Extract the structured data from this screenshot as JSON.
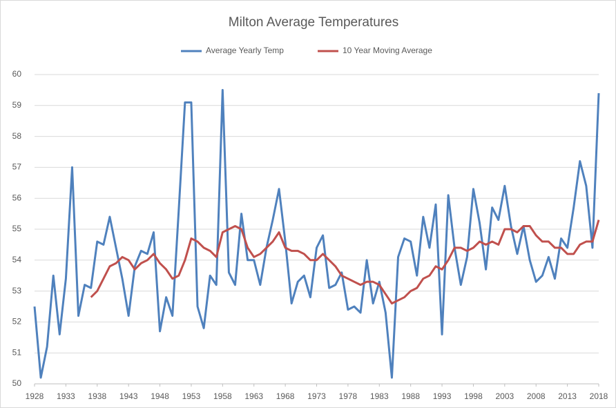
{
  "chart_data": {
    "type": "line",
    "title": "Milton Average Temperatures",
    "x": [
      1928,
      1929,
      1930,
      1931,
      1932,
      1933,
      1934,
      1935,
      1936,
      1937,
      1938,
      1939,
      1940,
      1941,
      1942,
      1943,
      1944,
      1945,
      1946,
      1947,
      1948,
      1949,
      1950,
      1951,
      1952,
      1953,
      1954,
      1955,
      1956,
      1957,
      1958,
      1959,
      1960,
      1961,
      1962,
      1963,
      1964,
      1965,
      1966,
      1967,
      1968,
      1969,
      1970,
      1971,
      1972,
      1973,
      1974,
      1975,
      1976,
      1977,
      1978,
      1979,
      1980,
      1981,
      1982,
      1983,
      1984,
      1985,
      1986,
      1987,
      1988,
      1989,
      1990,
      1991,
      1992,
      1993,
      1994,
      1995,
      1996,
      1997,
      1998,
      1999,
      2000,
      2001,
      2002,
      2003,
      2004,
      2005,
      2006,
      2007,
      2008,
      2009,
      2010,
      2011,
      2012,
      2013,
      2014,
      2015,
      2016,
      2017,
      2018
    ],
    "series": [
      {
        "name": "Average Yearly Temp",
        "color": "#4f81bd",
        "values": [
          52.5,
          50.2,
          51.2,
          53.5,
          51.6,
          53.4,
          57.0,
          52.2,
          53.2,
          53.1,
          54.6,
          54.5,
          55.4,
          54.4,
          53.4,
          52.2,
          53.8,
          54.3,
          54.2,
          54.9,
          51.7,
          52.8,
          52.2,
          55.6,
          59.1,
          59.1,
          52.5,
          51.8,
          53.5,
          53.2,
          59.5,
          53.6,
          53.2,
          55.5,
          54.0,
          54.0,
          53.2,
          54.4,
          55.3,
          56.3,
          54.6,
          52.6,
          53.3,
          53.5,
          52.8,
          54.4,
          54.8,
          53.1,
          53.2,
          53.6,
          52.4,
          52.5,
          52.3,
          54.0,
          52.6,
          53.3,
          52.3,
          50.2,
          54.1,
          54.7,
          54.6,
          53.5,
          55.4,
          54.4,
          55.8,
          51.6,
          56.1,
          54.4,
          53.2,
          54.1,
          56.3,
          55.2,
          53.7,
          55.7,
          55.3,
          56.4,
          55.1,
          54.2,
          55.1,
          54.0,
          53.3,
          53.5,
          54.1,
          53.4,
          54.7,
          54.4,
          55.7,
          57.2,
          56.4,
          54.4,
          59.4
        ]
      },
      {
        "name": "10 Year Moving Average",
        "color": "#c0504d",
        "values": [
          null,
          null,
          null,
          null,
          null,
          null,
          null,
          null,
          null,
          52.8,
          53.0,
          53.4,
          53.8,
          53.9,
          54.1,
          54.0,
          53.7,
          53.9,
          54.0,
          54.2,
          53.9,
          53.7,
          53.4,
          53.5,
          54.0,
          54.7,
          54.6,
          54.4,
          54.3,
          54.1,
          54.9,
          55.0,
          55.1,
          55.0,
          54.4,
          54.1,
          54.2,
          54.4,
          54.6,
          54.9,
          54.4,
          54.3,
          54.3,
          54.2,
          54.0,
          54.0,
          54.2,
          54.0,
          53.8,
          53.5,
          53.4,
          53.3,
          53.2,
          53.3,
          53.3,
          53.2,
          52.9,
          52.6,
          52.7,
          52.8,
          53.0,
          53.1,
          53.4,
          53.5,
          53.8,
          53.7,
          54.0,
          54.4,
          54.4,
          54.3,
          54.4,
          54.6,
          54.5,
          54.6,
          54.5,
          55.0,
          55.0,
          54.9,
          55.1,
          55.1,
          54.8,
          54.6,
          54.6,
          54.4,
          54.4,
          54.2,
          54.2,
          54.5,
          54.6,
          54.6,
          55.3
        ]
      }
    ],
    "xlim": [
      1928,
      2018
    ],
    "xticks": [
      1928,
      1933,
      1938,
      1943,
      1948,
      1953,
      1958,
      1963,
      1968,
      1973,
      1978,
      1983,
      1988,
      1993,
      1998,
      2003,
      2008,
      2013,
      2018
    ],
    "ylim": [
      50,
      60
    ],
    "yticks": [
      50,
      51,
      52,
      53,
      54,
      55,
      56,
      57,
      58,
      59,
      60
    ],
    "grid": true,
    "legend": "top"
  }
}
